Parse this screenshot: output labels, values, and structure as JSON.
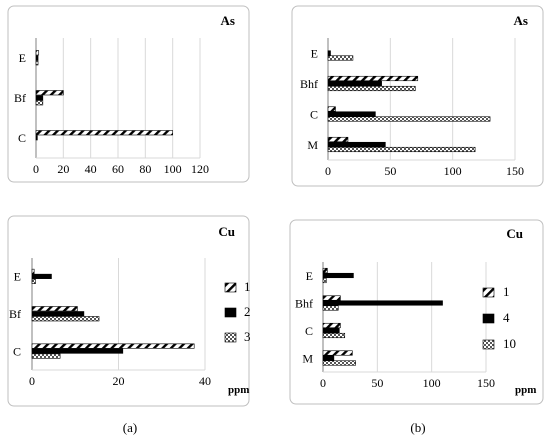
{
  "captions": {
    "a": "(a)",
    "b": "(b)"
  },
  "chart_data": [
    {
      "id": "a_as",
      "type": "bar",
      "orientation": "horizontal",
      "title": "As",
      "unit_label": "",
      "categories": [
        "E",
        "Bf",
        "C"
      ],
      "xlim": [
        0,
        120
      ],
      "ticks": [
        0,
        20,
        40,
        60,
        80,
        100,
        120
      ],
      "series": [
        {
          "name": "1",
          "values": [
            2,
            20,
            100
          ]
        },
        {
          "name": "2",
          "values": [
            1.5,
            5,
            1
          ]
        },
        {
          "name": "3",
          "values": [
            1.5,
            5,
            0
          ]
        }
      ]
    },
    {
      "id": "b_as",
      "type": "bar",
      "orientation": "horizontal",
      "title": "As",
      "unit_label": "",
      "categories": [
        "E",
        "Bhf",
        "C",
        "M"
      ],
      "xlim": [
        0,
        150
      ],
      "ticks": [
        0,
        50,
        100,
        150
      ],
      "series": [
        {
          "name": "1",
          "values": [
            0,
            72,
            6,
            16
          ]
        },
        {
          "name": "4",
          "values": [
            2,
            43,
            38,
            46
          ]
        },
        {
          "name": "10",
          "values": [
            20,
            70,
            130,
            118
          ]
        }
      ]
    },
    {
      "id": "a_cu",
      "type": "bar",
      "orientation": "horizontal",
      "title": "Cu",
      "unit_label": "ppm",
      "categories": [
        "E",
        "Bf",
        "C"
      ],
      "xlim": [
        0,
        40
      ],
      "ticks": [
        0,
        20,
        40
      ],
      "legend": [
        "1",
        "2",
        "3"
      ],
      "series": [
        {
          "name": "1",
          "values": [
            0.5,
            10.5,
            37.5
          ]
        },
        {
          "name": "2",
          "values": [
            4.5,
            12,
            21
          ]
        },
        {
          "name": "3",
          "values": [
            0.8,
            15.5,
            6.5
          ]
        }
      ]
    },
    {
      "id": "b_cu",
      "type": "bar",
      "orientation": "horizontal",
      "title": "Cu",
      "unit_label": "ppm",
      "categories": [
        "E",
        "Bhf",
        "C",
        "M"
      ],
      "xlim": [
        0,
        150
      ],
      "ticks": [
        0,
        50,
        100,
        150
      ],
      "legend": [
        "1",
        "4",
        "10"
      ],
      "series": [
        {
          "name": "1",
          "values": [
            4,
            16,
            16,
            27
          ]
        },
        {
          "name": "4",
          "values": [
            28,
            110,
            15,
            10
          ]
        },
        {
          "name": "10",
          "values": [
            3,
            14,
            20,
            30
          ]
        }
      ]
    }
  ]
}
